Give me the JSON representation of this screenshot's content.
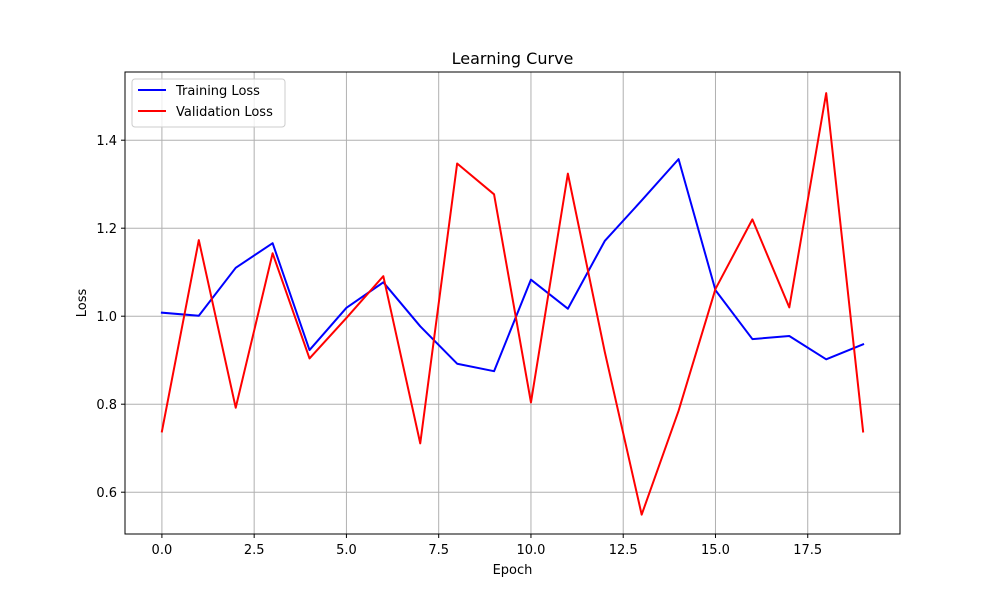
{
  "chart_data": {
    "type": "line",
    "title": "Learning Curve",
    "xlabel": "Epoch",
    "ylabel": "Loss",
    "xlim": [
      -1.0,
      20.0
    ],
    "ylim": [
      0.505,
      1.555
    ],
    "x_ticks": [
      0.0,
      2.5,
      5.0,
      7.5,
      10.0,
      12.5,
      15.0,
      17.5
    ],
    "x_tick_labels": [
      "0.0",
      "2.5",
      "5.0",
      "7.5",
      "10.0",
      "12.5",
      "15.0",
      "17.5"
    ],
    "y_ticks": [
      0.6,
      0.8,
      1.0,
      1.2,
      1.4
    ],
    "y_tick_labels": [
      "0.6",
      "0.8",
      "1.0",
      "1.2",
      "1.4"
    ],
    "grid": true,
    "legend_position": "top-left",
    "x": [
      0,
      1,
      2,
      3,
      4,
      5,
      6,
      7,
      8,
      9,
      10,
      11,
      12,
      13,
      14,
      15,
      16,
      17,
      18,
      19
    ],
    "series": [
      {
        "name": "Training Loss",
        "color": "#0000ff",
        "values": [
          1.008,
          1.001,
          1.11,
          1.166,
          0.923,
          1.019,
          1.077,
          0.977,
          0.892,
          0.875,
          1.083,
          1.017,
          1.171,
          1.263,
          1.357,
          1.059,
          0.948,
          0.955,
          0.902,
          0.936
        ]
      },
      {
        "name": "Validation Loss",
        "color": "#ff0000",
        "values": [
          0.738,
          1.173,
          0.792,
          1.143,
          0.904,
          0.996,
          1.091,
          0.711,
          1.347,
          1.277,
          0.804,
          1.324,
          0.919,
          0.549,
          0.785,
          1.062,
          1.22,
          1.02,
          1.507,
          0.738
        ]
      }
    ]
  }
}
